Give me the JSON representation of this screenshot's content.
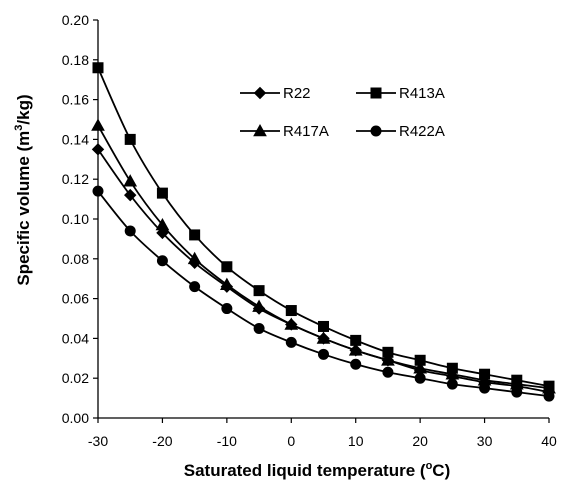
{
  "chart_data": {
    "type": "line",
    "title": "",
    "xlabel": "Saturated  liquid temperature (",
    "xlabel_sup": "o",
    "xlabel_end": "C)",
    "ylabel": "Specific volume (m",
    "ylabel_sup": "3",
    "ylabel_end": "/kg)",
    "xlim": [
      -30,
      40
    ],
    "ylim": [
      0,
      0.2
    ],
    "x_ticks": [
      "-30",
      "-20",
      "-10",
      "0",
      "10",
      "20",
      "30",
      "40"
    ],
    "y_ticks": [
      "0.00",
      "0.02",
      "0.04",
      "0.06",
      "0.08",
      "0.10",
      "0.12",
      "0.14",
      "0.16",
      "0.18",
      "0.20"
    ],
    "grid": false,
    "legend_position": "top-right",
    "x": [
      -30,
      -25,
      -20,
      -15,
      -10,
      -5,
      0,
      5,
      10,
      15,
      20,
      25,
      30,
      35,
      40
    ],
    "series": [
      {
        "name": "R22",
        "marker": "diamond",
        "values": [
          0.135,
          0.112,
          0.093,
          0.078,
          0.066,
          0.055,
          0.047,
          0.04,
          0.034,
          0.029,
          0.024,
          0.021,
          0.018,
          0.016,
          0.013
        ]
      },
      {
        "name": "R413A",
        "marker": "square",
        "values": [
          0.176,
          0.14,
          0.113,
          0.092,
          0.076,
          0.064,
          0.054,
          0.046,
          0.039,
          0.033,
          0.029,
          0.025,
          0.022,
          0.019,
          0.016
        ]
      },
      {
        "name": "R417A",
        "marker": "triangle",
        "values": [
          0.147,
          0.119,
          0.097,
          0.08,
          0.067,
          0.056,
          0.047,
          0.04,
          0.034,
          0.029,
          0.025,
          0.022,
          0.019,
          0.017,
          0.015
        ]
      },
      {
        "name": "R422A",
        "marker": "circle",
        "values": [
          0.114,
          0.094,
          0.079,
          0.066,
          0.055,
          0.045,
          0.038,
          0.032,
          0.027,
          0.023,
          0.02,
          0.017,
          0.015,
          0.013,
          0.011
        ]
      }
    ],
    "colors": {
      "line": "#000000",
      "background": "#ffffff"
    }
  }
}
